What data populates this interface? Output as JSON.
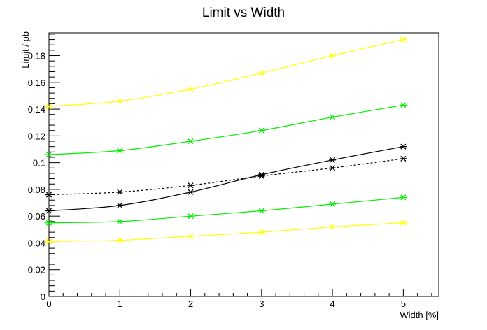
{
  "chart_data": {
    "type": "line",
    "title": "Limit vs Width",
    "xlabel": "Width [%]",
    "ylabel": "Limit / pb",
    "xlim": [
      0,
      5.5
    ],
    "ylim": [
      0,
      0.197
    ],
    "x_ticks": [
      0,
      1,
      2,
      3,
      4,
      5
    ],
    "x_tick_labels": [
      "0",
      "1",
      "2",
      "3",
      "4",
      "5"
    ],
    "y_ticks": [
      0,
      0.02,
      0.04,
      0.06,
      0.08,
      0.1,
      0.12,
      0.14,
      0.16,
      0.18
    ],
    "y_tick_labels": [
      "0",
      "0.02",
      "0.04",
      "0.06",
      "0.08",
      "0.1",
      "0.12",
      "0.14",
      "0.16",
      "0.18"
    ],
    "grid": false,
    "legend": "none",
    "x": [
      0,
      1,
      2,
      3,
      4,
      5
    ],
    "series": [
      {
        "values": [
          0.142,
          0.146,
          0.155,
          0.167,
          0.18,
          0.192
        ],
        "color": "#ffff00",
        "dash": "solid",
        "marker": "asterisk"
      },
      {
        "values": [
          0.106,
          0.109,
          0.116,
          0.124,
          0.134,
          0.143
        ],
        "color": "#00ee00",
        "dash": "solid",
        "marker": "asterisk"
      },
      {
        "values": [
          0.064,
          0.068,
          0.078,
          0.091,
          0.102,
          0.112
        ],
        "color": "#000000",
        "dash": "solid",
        "marker": "asterisk"
      },
      {
        "values": [
          0.076,
          0.078,
          0.083,
          0.09,
          0.096,
          0.103
        ],
        "color": "#000000",
        "dash": "dashed",
        "marker": "asterisk"
      },
      {
        "values": [
          0.055,
          0.056,
          0.06,
          0.064,
          0.069,
          0.074
        ],
        "color": "#00ee00",
        "dash": "solid",
        "marker": "asterisk"
      },
      {
        "values": [
          0.041,
          0.042,
          0.045,
          0.048,
          0.052,
          0.055
        ],
        "color": "#ffff00",
        "dash": "solid",
        "marker": "asterisk"
      }
    ]
  }
}
